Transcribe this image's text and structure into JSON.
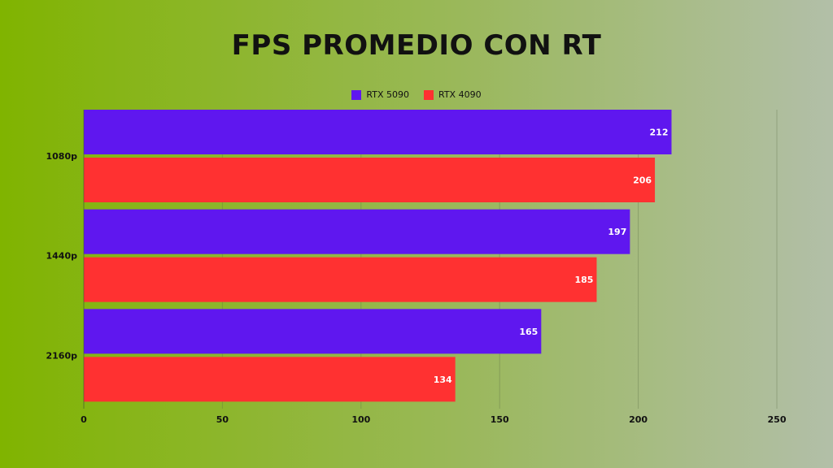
{
  "chart_data": {
    "type": "bar",
    "orientation": "horizontal",
    "title": "FPS PROMEDIO CON RT",
    "categories": [
      "1080p",
      "1440p",
      "2160p"
    ],
    "series": [
      {
        "name": "RTX 5090",
        "color": "#5f17ef",
        "values": [
          212,
          197,
          165
        ]
      },
      {
        "name": "RTX 4090",
        "color": "#ff3131",
        "values": [
          206,
          185,
          134
        ]
      }
    ],
    "x_ticks": [
      0,
      50,
      100,
      150,
      200,
      250
    ],
    "xlim": [
      0,
      250
    ],
    "grid": true,
    "legend_position": "top"
  }
}
